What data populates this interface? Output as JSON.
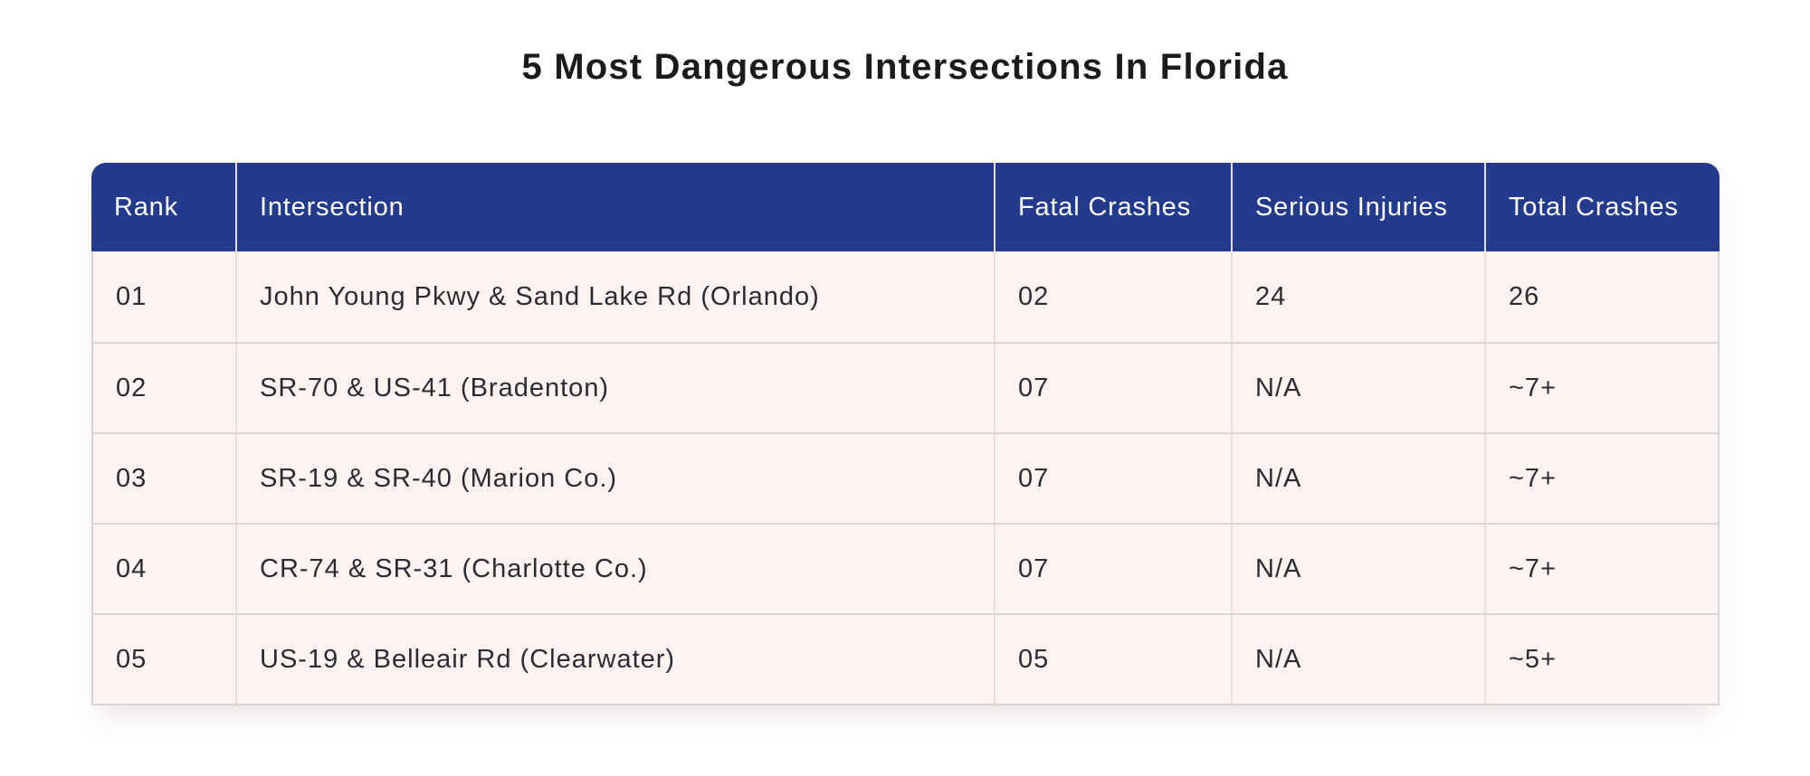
{
  "page_title": "5 Most Dangerous Intersections In Florida",
  "colors": {
    "header_bg": "#243a8c",
    "header_text": "#ffffff",
    "row_bg": "#fdf4f2",
    "body_text": "#2c2b32",
    "row_divider": "#d8d6d6",
    "column_divider": "#e8e1df"
  },
  "chart_data": {
    "type": "table",
    "title": "5 Most Dangerous Intersections In Florida",
    "columns": [
      "Rank",
      "Intersection",
      "Fatal Crashes",
      "Serious Injuries",
      "Total Crashes"
    ],
    "rows": [
      [
        "01",
        "John Young Pkwy & Sand Lake Rd (Orlando)",
        "02",
        "24",
        "26"
      ],
      [
        "02",
        "SR-70 & US-41 (Bradenton)",
        "07",
        "N/A",
        "~7+"
      ],
      [
        "03",
        "SR-19 & SR-40 (Marion Co.)",
        "07",
        "N/A",
        "~7+"
      ],
      [
        "04",
        "CR-74 & SR-31 (Charlotte Co.)",
        "07",
        "N/A",
        "~7+"
      ],
      [
        "05",
        "US-19 & Belleair Rd (Clearwater)",
        "05",
        "N/A",
        "~5+"
      ]
    ]
  }
}
